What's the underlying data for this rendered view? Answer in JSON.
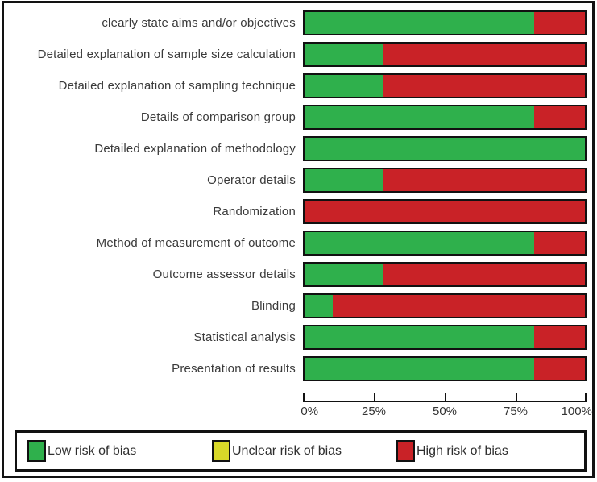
{
  "chart_data": {
    "type": "bar",
    "orientation": "horizontal",
    "stacked": true,
    "title": "",
    "xlabel": "",
    "ylabel": "",
    "categories": [
      "clearly state aims and/or objectives",
      "Detailed explanation of sample size calculation",
      "Detailed explanation of sampling technique",
      "Details of comparison group",
      "Detailed explanation of methodology",
      "Operator details",
      "Randomization",
      "Method of measurement of outcome",
      "Outcome assessor details",
      "Blinding",
      "Statistical analysis",
      "Presentation of results"
    ],
    "series": [
      {
        "name": "Low risk of bias",
        "color": "#2fb04c",
        "values": [
          82,
          28,
          28,
          82,
          100,
          28,
          0,
          82,
          28,
          10,
          82,
          82
        ]
      },
      {
        "name": "Unclear risk of bias",
        "color": "#d8d829",
        "values": [
          0,
          0,
          0,
          0,
          0,
          0,
          0,
          0,
          0,
          0,
          0,
          0
        ]
      },
      {
        "name": "High risk of bias",
        "color": "#c92227",
        "values": [
          18,
          72,
          72,
          18,
          0,
          72,
          100,
          18,
          72,
          90,
          18,
          18
        ]
      }
    ],
    "x_axis": {
      "range": [
        0,
        100
      ],
      "ticks": [
        "0%",
        "25%",
        "50%",
        "75%",
        "100%"
      ]
    },
    "legend_position": "bottom",
    "grid": false
  },
  "legend": {
    "items": [
      {
        "label": "Low risk of bias",
        "color": "#2fb04c"
      },
      {
        "label": "Unclear risk of bias",
        "color": "#d8d829"
      },
      {
        "label": "High risk of bias",
        "color": "#c92227"
      }
    ]
  },
  "colors": {
    "low": "#2fb04c",
    "unclear": "#d8d829",
    "high": "#c92227",
    "border": "#111111",
    "text": "#3a3a3a"
  }
}
